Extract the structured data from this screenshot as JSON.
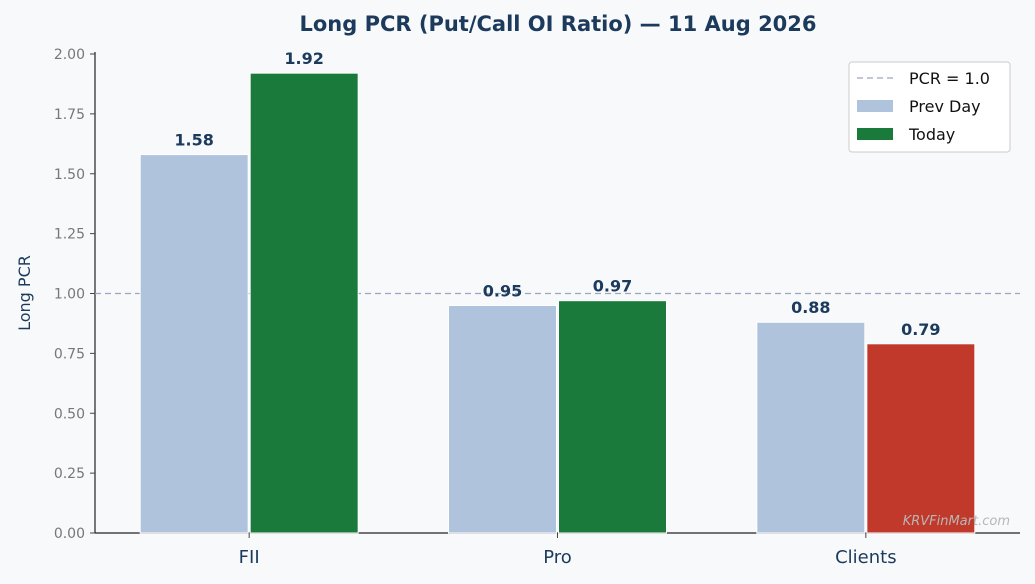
{
  "chart_data": {
    "type": "bar",
    "title": "Long PCR (Put/Call OI Ratio) — 11 Aug 2026",
    "xlabel": "",
    "ylabel": "Long PCR",
    "ylim": [
      0,
      2.0
    ],
    "yticks": [
      "0.00",
      "0.25",
      "0.50",
      "0.75",
      "1.00",
      "1.25",
      "1.50",
      "1.75",
      "2.00"
    ],
    "categories": [
      "FII",
      "Pro",
      "Clients"
    ],
    "series": [
      {
        "name": "Prev Day",
        "values": [
          1.58,
          0.95,
          0.88
        ],
        "labels": [
          "1.58",
          "0.95",
          "0.88"
        ],
        "color": "#afc3dc"
      },
      {
        "name": "Today",
        "values": [
          1.92,
          0.97,
          0.79
        ],
        "labels": [
          "1.92",
          "0.97",
          "0.79"
        ],
        "color": "#1a7a3c",
        "point_colors": [
          "#1a7a3c",
          "#1a7a3c",
          "#c0392b"
        ]
      }
    ],
    "reference_line": {
      "name": "PCR = 1.0",
      "value": 1.0,
      "style": "dashed",
      "color": "#9aa8bd"
    },
    "grid": false,
    "legend": "top-right"
  },
  "watermark": "KRVFinMart.com"
}
